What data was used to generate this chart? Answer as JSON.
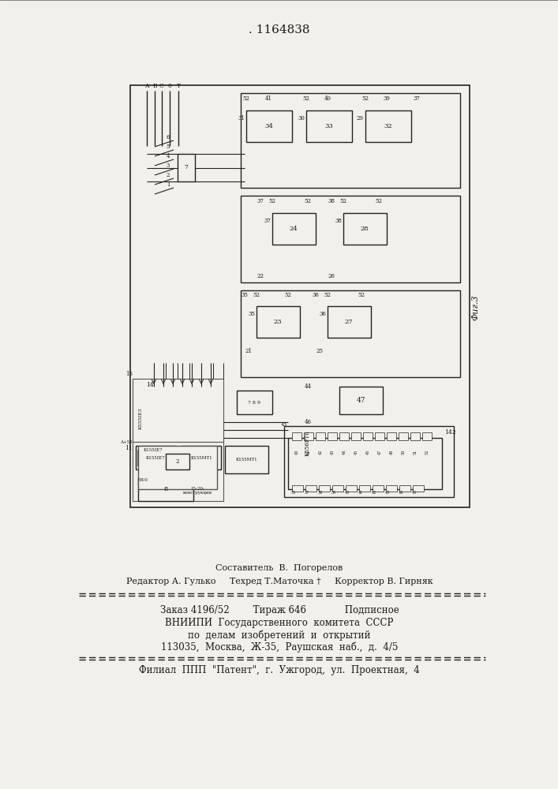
{
  "patent_number": ". 1164838",
  "bg_color": "#f2f0eb",
  "fig_label": "Фиг.3",
  "footer": {
    "line1": "Составитель  В.  Погорелов",
    "line2": "Редактор А. Гулько     Техред Т.Маточка †     Корректор В. Гирняк",
    "line3": "Заказ 4196/52        Тираж 646             Подписное",
    "line4": "ВНИИПИ  Государственного  комитета  СССР",
    "line5": "по  делам  изобретений  и  открытий",
    "line6": "113035,  Москва,  Ж-35,  Раушская  наб.,  д.  4/5",
    "line7": "Филиал  ППП  \"Патент\",  г.  Ужгород,  ул.  Проектная,  4"
  }
}
